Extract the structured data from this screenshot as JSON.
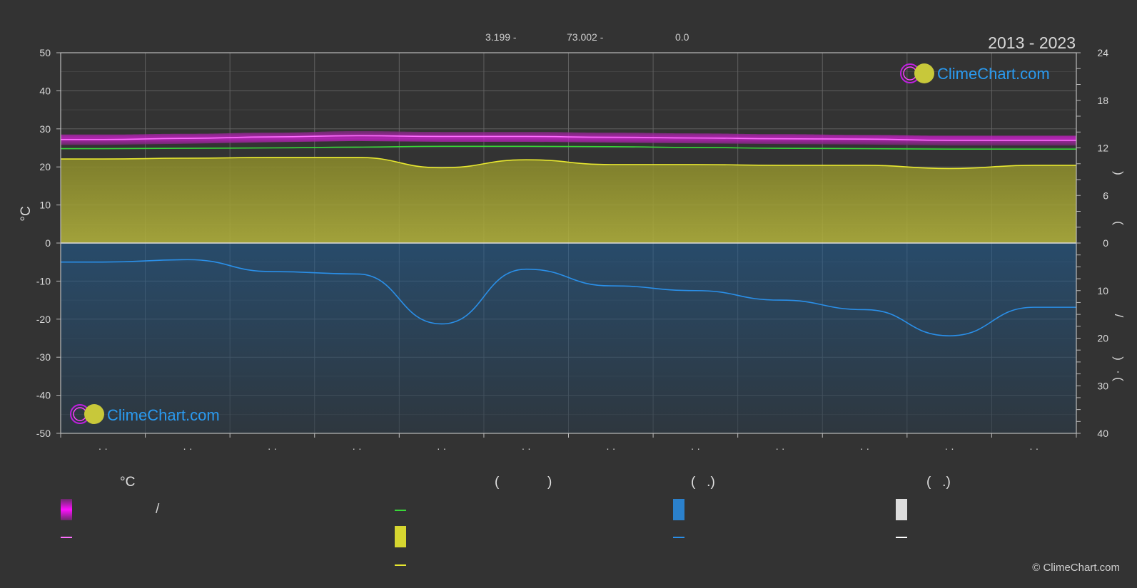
{
  "header": {
    "year_range": "2013 - 2023",
    "coords": [
      {
        "label": "3.199 -"
      },
      {
        "label": "73.002 -"
      },
      {
        "label": "0.0"
      }
    ]
  },
  "watermark": {
    "brand_text": "ClimeChart.com"
  },
  "legend": {
    "temp_heading": "°C",
    "sun_heading_open": "(",
    "sun_heading_close": ")",
    "rain_heading": "(   .)",
    "snow_heading": "(   .)",
    "temp_separator": "/"
  },
  "copyright": "© ClimeChart.com",
  "colors": {
    "background": "#333333",
    "max_temp_band": "#e020e0",
    "mean_temp_line": "#ff6fff",
    "daylight_line": "#38d838",
    "sunshine_fill": "#b8b83a",
    "sunshine_line": "#e8e830",
    "rain_fill": "#1e5f99",
    "rain_line": "#2a8fe8",
    "snow_line": "#ffffff",
    "grid": "#6a6a6a"
  },
  "chart_data": {
    "type": "area",
    "x_tick_label": "· ·",
    "months": 12,
    "left_axis": {
      "label": "°C",
      "range": [
        -50,
        50
      ],
      "ticks": [
        50,
        40,
        30,
        20,
        10,
        0,
        -10,
        -20,
        -30,
        -40,
        -50
      ]
    },
    "right_axis_top": {
      "range": [
        0,
        24
      ],
      "ticks": [
        24,
        18,
        12,
        6,
        0
      ],
      "label_glyphs": [
        ")",
        "("
      ]
    },
    "right_axis_bottom": {
      "range": [
        0,
        40
      ],
      "ticks": [
        10,
        20,
        30,
        40
      ],
      "label_glyphs": [
        "/",
        ")",
        "·",
        "("
      ]
    },
    "grid": true,
    "series": [
      {
        "key": "mean_temp",
        "axis": "temp",
        "values": [
          27.2,
          27.5,
          27.9,
          28.2,
          28.0,
          28.0,
          27.8,
          27.6,
          27.4,
          27.3,
          27.0,
          27.0
        ]
      },
      {
        "key": "max_temp_band_top",
        "axis": "temp",
        "values": [
          28.5,
          28.7,
          29.0,
          29.4,
          29.2,
          29.2,
          29.0,
          28.8,
          28.6,
          28.4,
          28.2,
          28.2
        ]
      },
      {
        "key": "max_temp_band_bottom",
        "axis": "temp",
        "values": [
          25.8,
          26.1,
          26.5,
          26.8,
          26.6,
          26.6,
          26.4,
          26.2,
          26.0,
          25.9,
          25.6,
          25.6
        ]
      },
      {
        "key": "daylight_hours",
        "axis": "sun",
        "values": [
          11.9,
          11.95,
          12.0,
          12.1,
          12.2,
          12.2,
          12.15,
          12.05,
          11.95,
          11.9,
          11.85,
          11.85
        ]
      },
      {
        "key": "sunshine_hours",
        "axis": "sun",
        "values": [
          10.6,
          10.7,
          10.8,
          10.8,
          9.5,
          10.5,
          9.9,
          9.9,
          9.8,
          9.8,
          9.4,
          9.8
        ]
      },
      {
        "key": "precipitation_mm",
        "axis": "rain",
        "values": [
          4.0,
          3.5,
          6.0,
          6.5,
          17.0,
          5.5,
          9.0,
          10.0,
          12.0,
          14.0,
          19.5,
          13.5
        ]
      }
    ]
  }
}
